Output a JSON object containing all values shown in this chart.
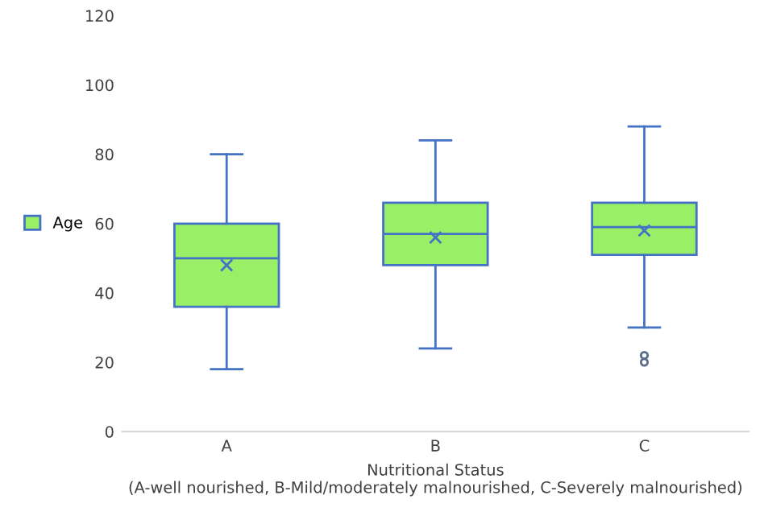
{
  "chart_data": {
    "type": "box",
    "xlabel": "Nutritional Status\n(A-well nourished, B-Mild/moderately malnourished, C-Severely malnourished)",
    "categories": [
      "A",
      "B",
      "C"
    ],
    "series": [
      {
        "name": "Age",
        "color": "#99f066",
        "boxes": [
          {
            "low": 18,
            "q1": 36,
            "median": 50,
            "q3": 60,
            "high": 80,
            "mean": 48
          },
          {
            "low": 24,
            "q1": 48,
            "median": 57,
            "q3": 66,
            "high": 84,
            "mean": 56
          },
          {
            "low": 30,
            "q1": 51,
            "median": 59,
            "q3": 66,
            "high": 88,
            "mean": 58,
            "outliers": [
              20,
              22
            ]
          }
        ]
      }
    ],
    "ylim": [
      0,
      120
    ],
    "yticks": [
      0,
      20,
      40,
      60,
      80,
      100,
      120
    ],
    "grid": false,
    "legend": "left"
  }
}
